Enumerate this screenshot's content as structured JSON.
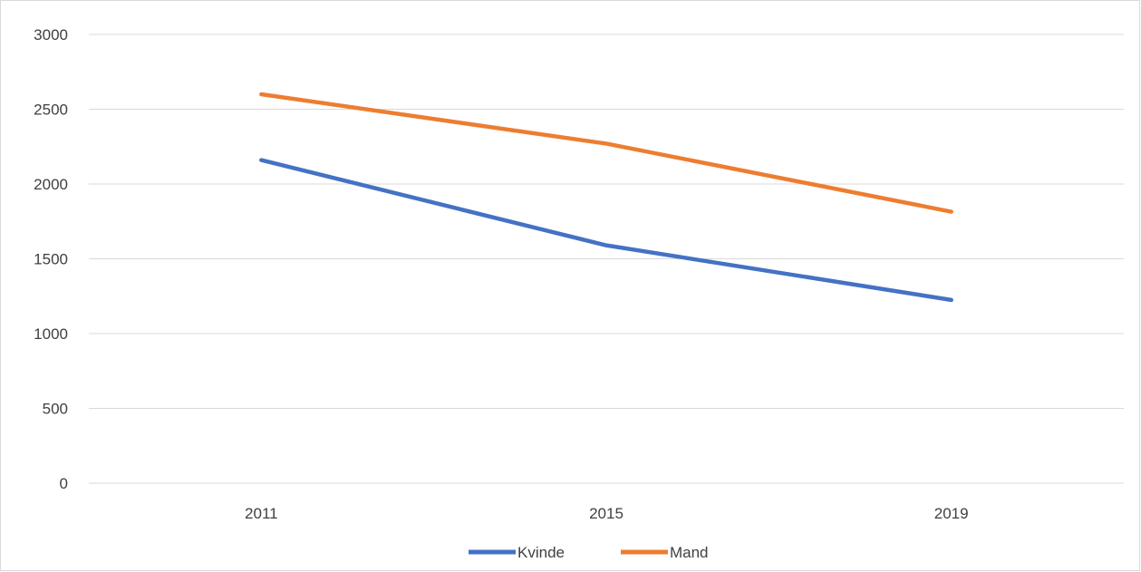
{
  "chart_data": {
    "type": "line",
    "title": "",
    "xlabel": "",
    "ylabel": "",
    "categories": [
      "2011",
      "2015",
      "2019"
    ],
    "series": [
      {
        "name": "Kvinde",
        "color": "#4472c4",
        "values": [
          2160,
          1590,
          1225
        ]
      },
      {
        "name": "Mand",
        "color": "#ed7d31",
        "values": [
          2600,
          2270,
          1815
        ]
      }
    ],
    "ylim": [
      0,
      3000
    ],
    "yticks": [
      "0",
      "500",
      "1000",
      "1500",
      "2000",
      "2500",
      "3000"
    ],
    "grid": true,
    "legend_position": "bottom"
  }
}
